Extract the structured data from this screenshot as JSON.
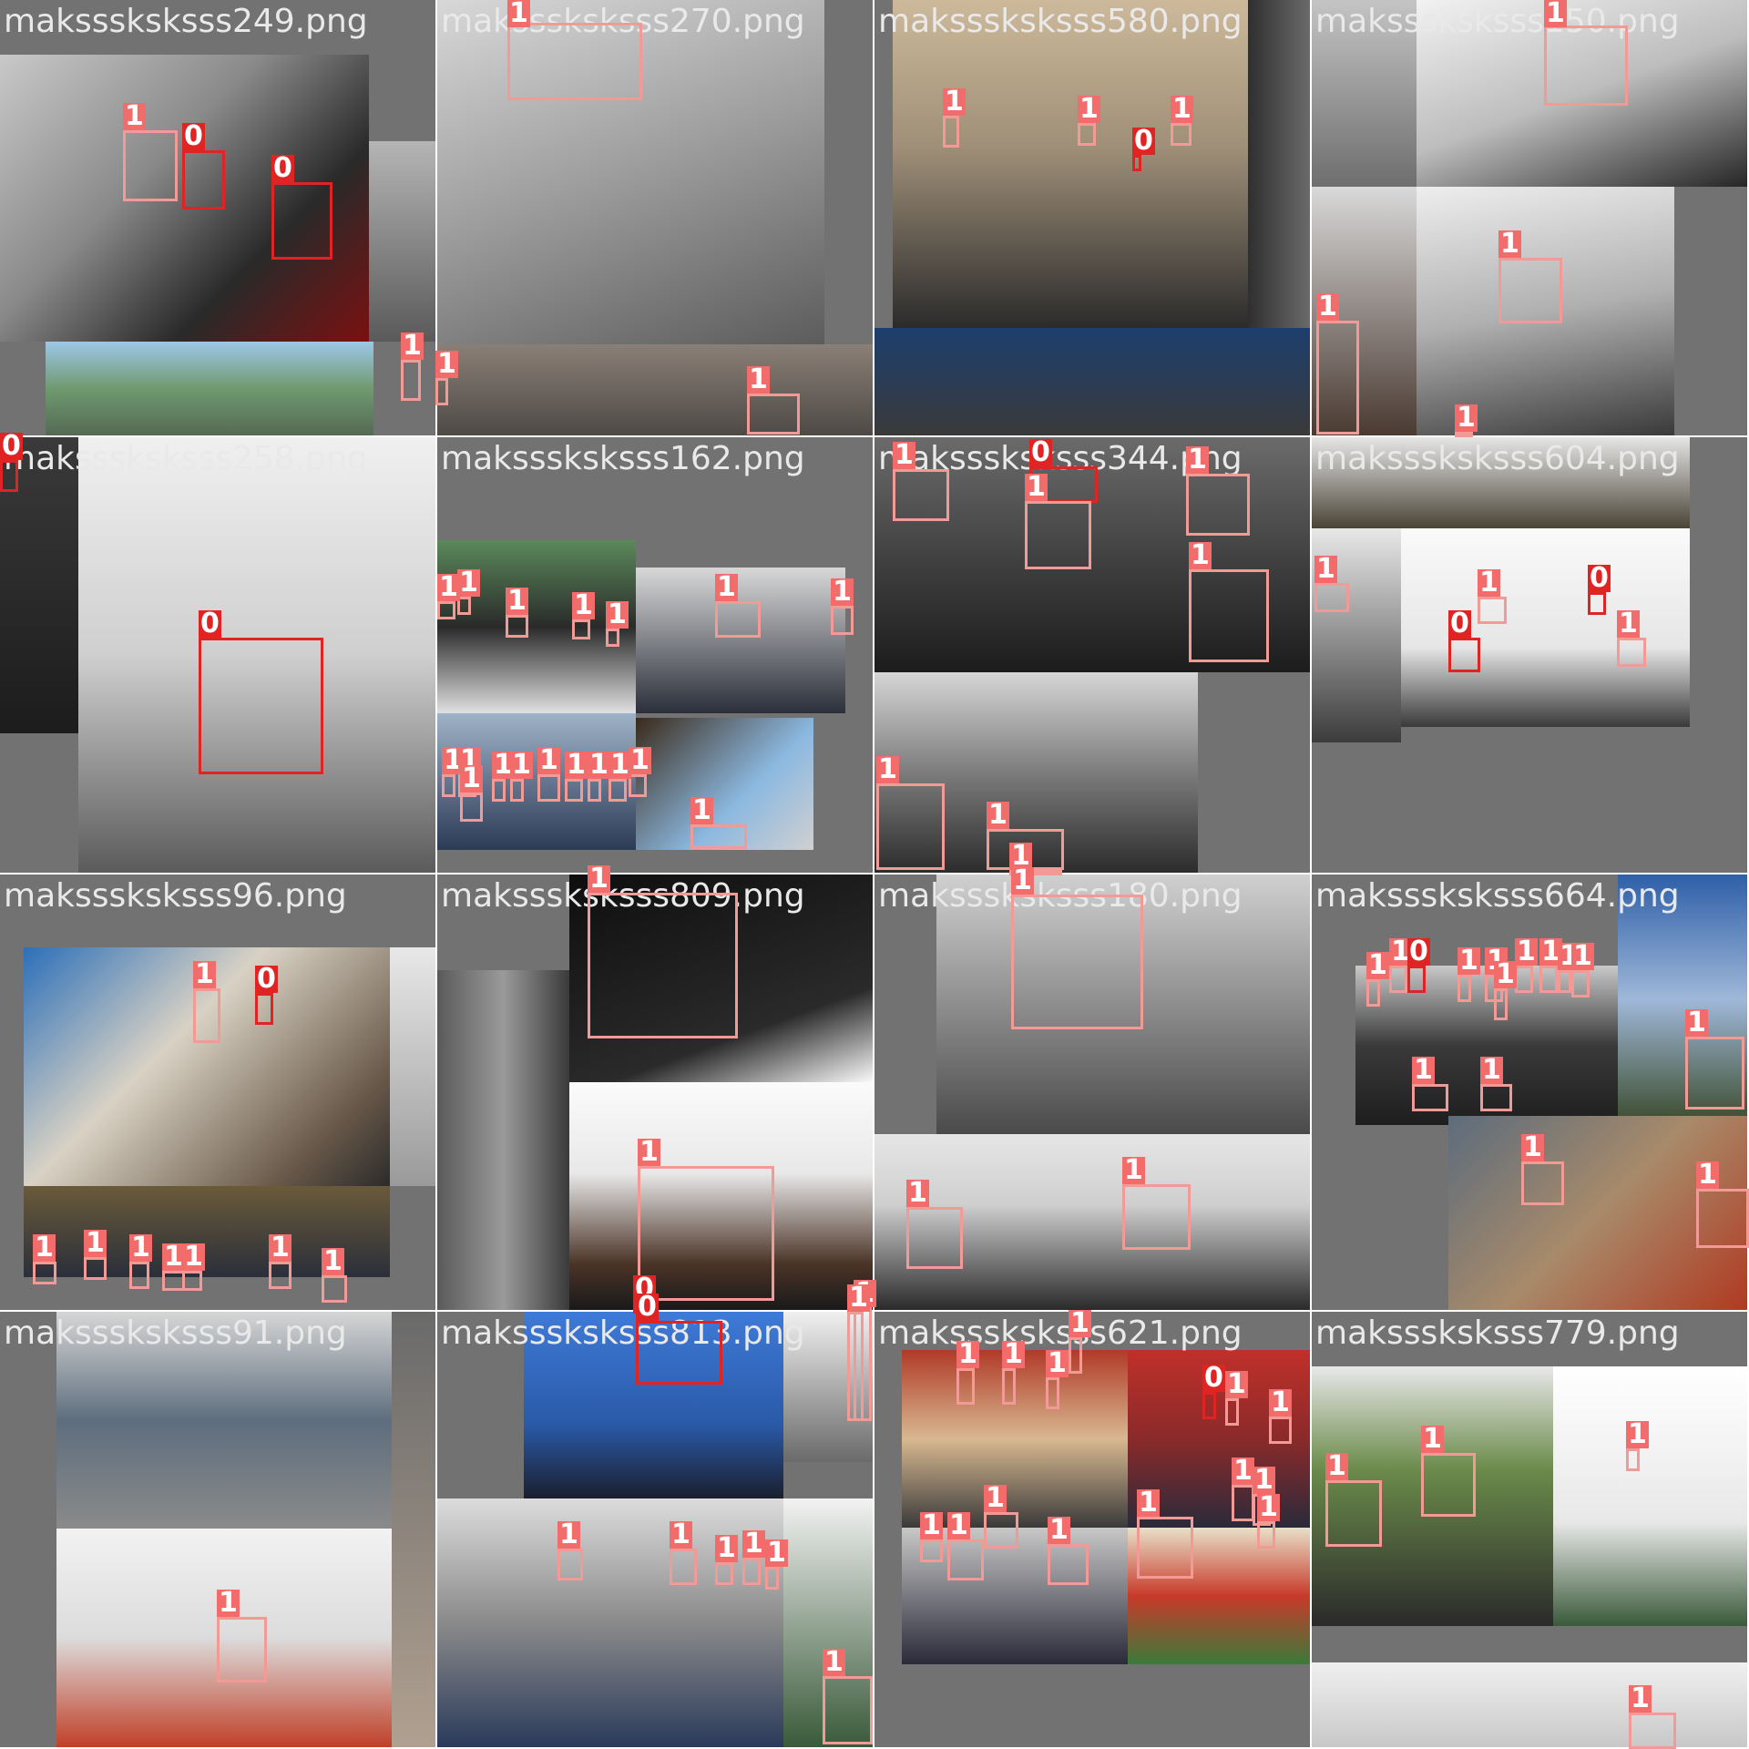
{
  "colors": {
    "tile_background": "#727272",
    "filename_text": "#e9e9e9",
    "class_1_box": "#f19a96",
    "class_0_box": "#e02424",
    "class_1_label_bg": "#f26c6c",
    "class_0_label_bg": "#e02424"
  },
  "classes": {
    "mask": "1",
    "no_mask": "0"
  },
  "tiles": [
    {
      "name": "maksssksksss249.png"
    },
    {
      "name": "maksssksksss270.png"
    },
    {
      "name": "maksssksksss580.png"
    },
    {
      "name": "maksssksksss150.png"
    },
    {
      "name": "maksssksksss258.png"
    },
    {
      "name": "maksssksksss162.png"
    },
    {
      "name": "maksssksksss344.png"
    },
    {
      "name": "maksssksksss604.png"
    },
    {
      "name": "maksssksksss96.png"
    },
    {
      "name": "maksssksksss809.png"
    },
    {
      "name": "maksssksksss180.png"
    },
    {
      "name": "maksssksksss664.png"
    },
    {
      "name": "maksssksksss91.png"
    },
    {
      "name": "maksssksksss813.png"
    },
    {
      "name": "maksssksksss621.png"
    },
    {
      "name": "maksssksksss779.png"
    }
  ]
}
